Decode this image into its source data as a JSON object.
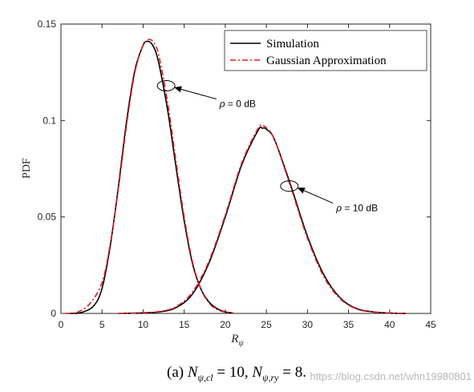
{
  "chart_data": {
    "type": "line",
    "xlabel": "R",
    "xlabel_sub": "ψ",
    "ylabel": "PDF",
    "xlim": [
      0,
      45
    ],
    "ylim": [
      0,
      0.15
    ],
    "xticks": [
      0,
      5,
      10,
      15,
      20,
      25,
      30,
      35,
      40,
      45
    ],
    "yticks": [
      0,
      0.05,
      0.1,
      0.15
    ],
    "xtick_labels": [
      "0",
      "5",
      "10",
      "15",
      "20",
      "25",
      "30",
      "35",
      "40",
      "45"
    ],
    "ytick_labels": [
      "0",
      "0.05",
      "0.1",
      "0.15"
    ],
    "grid": false,
    "legend_position": "top-right",
    "legend": [
      "Simulation",
      "Gaussian Approximation"
    ],
    "series": [
      {
        "name": "Simulation",
        "color": "#000000",
        "style": "solid",
        "curves": [
          {
            "x": [
              1.0,
              2.5,
              4.0,
              5.0,
              6.0,
              7.0,
              8.0,
              9.0,
              10.0,
              10.5,
              11.0,
              11.5,
              12.0,
              13.0,
              14.0,
              15.0,
              16.0,
              17.0,
              18.0,
              19.0,
              20.0,
              21.0
            ],
            "y": [
              0.0,
              0.0005,
              0.004,
              0.013,
              0.035,
              0.066,
              0.1,
              0.126,
              0.139,
              0.141,
              0.14,
              0.136,
              0.128,
              0.105,
              0.076,
              0.048,
              0.026,
              0.013,
              0.006,
              0.0025,
              0.0008,
              0.0002
            ]
          },
          {
            "x": [
              7.0,
              10.0,
              12.0,
              14.0,
              16.0,
              18.0,
              20.0,
              22.0,
              24.0,
              24.5,
              25.0,
              26.0,
              28.0,
              30.0,
              32.0,
              34.0,
              36.0,
              38.0,
              40.0,
              42.0
            ],
            "y": [
              0.0,
              0.0003,
              0.0008,
              0.003,
              0.01,
              0.026,
              0.05,
              0.077,
              0.095,
              0.096,
              0.0955,
              0.09,
              0.066,
              0.04,
              0.02,
              0.008,
              0.0025,
              0.0008,
              0.0002,
              0.0
            ]
          }
        ]
      },
      {
        "name": "Gaussian Approximation",
        "color": "#e8181e",
        "style": "dashdot",
        "curves": [
          {
            "x": [
              0.5,
              2.0,
              3.5,
              5.0,
              6.0,
              7.0,
              8.0,
              9.0,
              10.0,
              10.8,
              11.5,
              12.0,
              13.0,
              14.0,
              15.0,
              16.0,
              17.0,
              18.0,
              19.0,
              20.0,
              21.0
            ],
            "y": [
              0.0,
              0.0007,
              0.005,
              0.016,
              0.036,
              0.065,
              0.098,
              0.125,
              0.139,
              0.142,
              0.139,
              0.132,
              0.109,
              0.079,
              0.05,
              0.027,
              0.013,
              0.0055,
              0.002,
              0.0007,
              0.0002
            ]
          },
          {
            "x": [
              7.0,
              10.0,
              12.0,
              14.0,
              16.0,
              18.0,
              20.0,
              22.0,
              24.0,
              24.5,
              25.0,
              26.0,
              28.0,
              30.0,
              32.0,
              34.0,
              36.0,
              38.0,
              40.0,
              42.0
            ],
            "y": [
              0.0,
              0.0004,
              0.001,
              0.0035,
              0.011,
              0.027,
              0.051,
              0.078,
              0.096,
              0.0972,
              0.0962,
              0.09,
              0.065,
              0.039,
              0.019,
              0.0075,
              0.0023,
              0.0007,
              0.0002,
              0.0
            ]
          }
        ]
      }
    ],
    "annotations": [
      {
        "label": "ρ = 0 dB",
        "ellipse_at": [
          12.8,
          0.118
        ],
        "text_at": [
          19.3,
          0.107
        ],
        "symbol": "ρ",
        "text": " = 0 dB"
      },
      {
        "label": "ρ = 10 dB",
        "ellipse_at": [
          27.8,
          0.066
        ],
        "text_at": [
          33.5,
          0.053
        ],
        "symbol": "ρ",
        "text": " = 10 dB"
      }
    ],
    "caption": "(a) N_{ψ,cl} = 10, N_{ψ,ry} = 8.",
    "caption_parts": {
      "prefix": "(a) ",
      "n1": "N",
      "n1_sub": "ψ,cl",
      "eq1": " = 10, ",
      "n2": "N",
      "n2_sub": "ψ,ry",
      "eq2": " = 8."
    }
  },
  "watermark": "https://blog.csdn.net/whn19980801"
}
